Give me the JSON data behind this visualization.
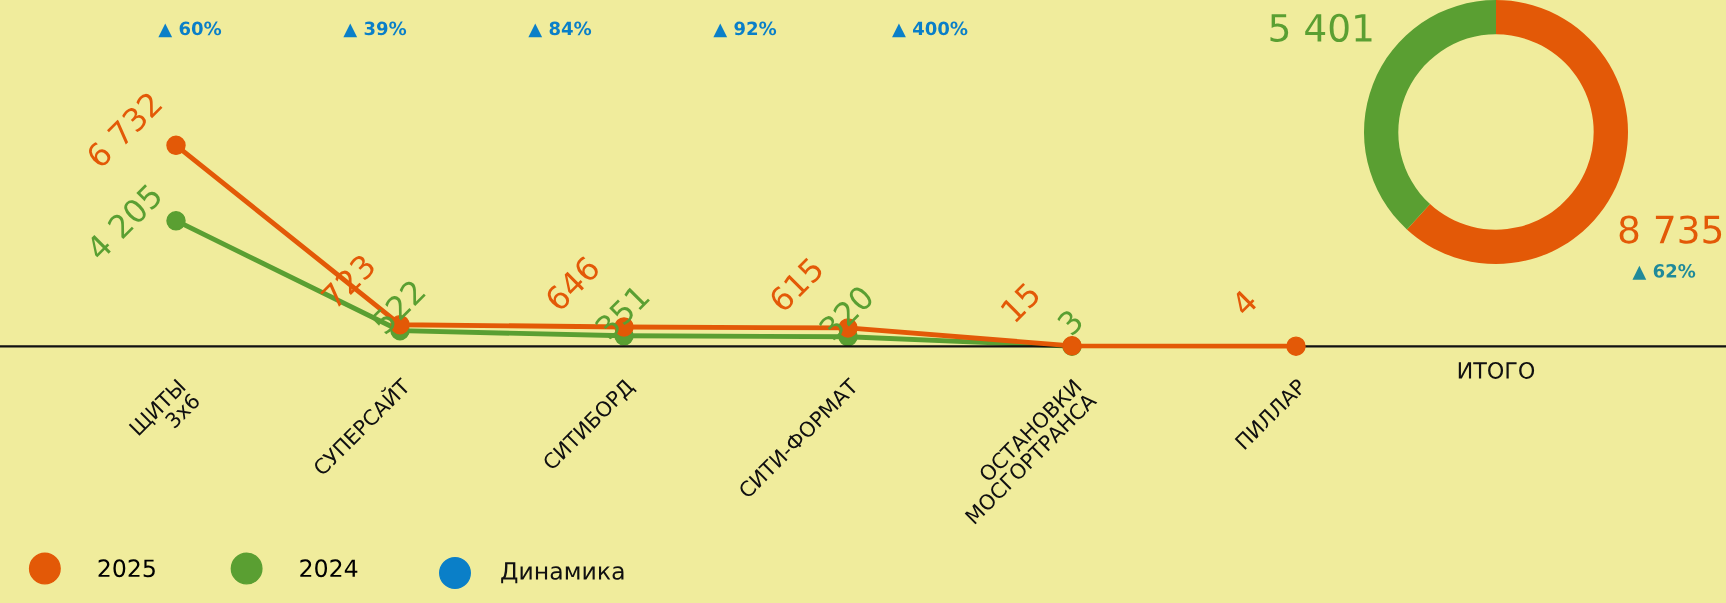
{
  "chart_data": [
    {
      "type": "line",
      "categories": [
        "ЩИТЫ\n3х6",
        "СУПЕРСАЙТ",
        "СИТИБОРД",
        "СИТИ-ФОРМАТ",
        "ОСТАНОВКИ\nМОСГОРТРАНСА",
        "ПИЛЛАР"
      ],
      "series": [
        {
          "name": "2025",
          "color": "#e35907",
          "values": [
            6732,
            723,
            646,
            615,
            15,
            4
          ],
          "value_labels": [
            "6 732",
            "723",
            "646",
            "615",
            "15",
            "4"
          ]
        },
        {
          "name": "2024",
          "color": "#5a9f32",
          "values": [
            4205,
            522,
            351,
            320,
            3,
            null
          ],
          "value_labels": [
            "4 205",
            "522",
            "351",
            "320",
            "3",
            null
          ]
        }
      ],
      "annotations": [
        "▲ 60%",
        "▲ 39%",
        "▲ 84%",
        "▲ 92%",
        "▲ 400%",
        "Динамика"
      ],
      "marker": "circle",
      "line_style": "solid",
      "ylim": [
        -8600,
        11600
      ],
      "tick_labels": "x",
      "grid": false,
      "legend": "bottom left"
    },
    {
      "type": "donut",
      "categories": [
        null,
        null
      ],
      "values": [
        8735,
        5401
      ],
      "colors": [
        "#e35907",
        "#5a9f32"
      ],
      "value_labels": [
        "8 735",
        "5 401"
      ],
      "xlabel": "ИТОГО",
      "annotations": [
        "▲ 62%"
      ]
    }
  ]
}
